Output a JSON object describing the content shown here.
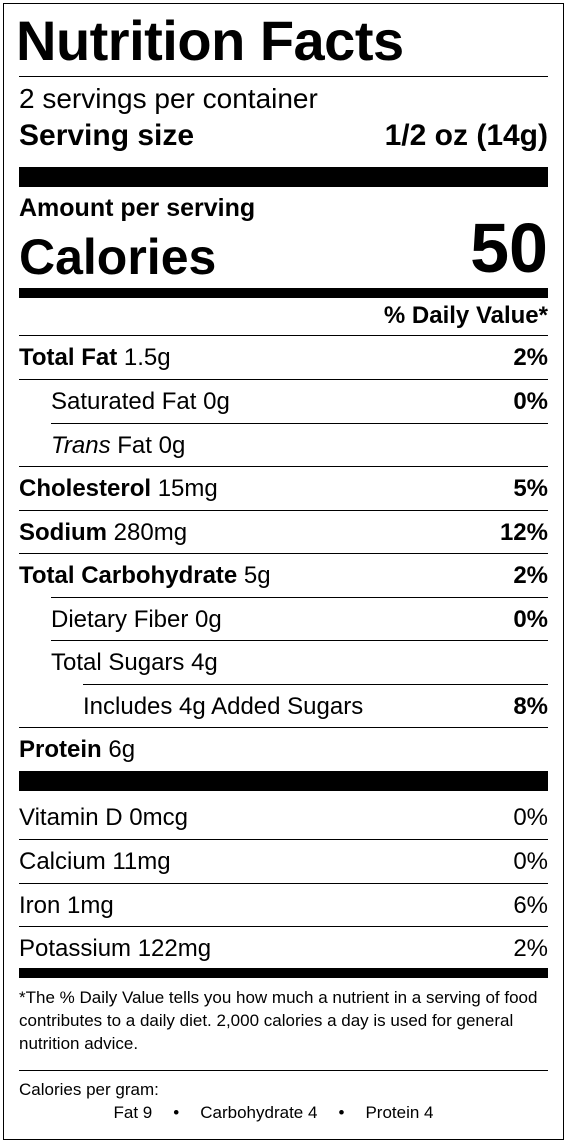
{
  "title": "Nutrition Facts",
  "servings_per_container": "2 servings per container",
  "serving_size": {
    "label": "Serving size",
    "value": "1/2 oz (14g)"
  },
  "amount_per_serving": "Amount per serving",
  "calories": {
    "label": "Calories",
    "value": "50"
  },
  "daily_value_header": "% Daily Value*",
  "nutrients": [
    {
      "name": "Total Fat",
      "amount": "1.5g",
      "dv": "2%"
    },
    {
      "name": "Saturated Fat",
      "amount": "0g",
      "dv": "0%"
    },
    {
      "name": "Trans",
      "suffix": "Fat",
      "amount": "0g",
      "dv": ""
    },
    {
      "name": "Cholesterol",
      "amount": "15mg",
      "dv": "5%"
    },
    {
      "name": "Sodium",
      "amount": "280mg",
      "dv": "12%"
    },
    {
      "name": "Total Carbohydrate",
      "amount": "5g",
      "dv": "2%"
    },
    {
      "name": "Dietary Fiber",
      "amount": "0g",
      "dv": "0%"
    },
    {
      "name": "Total Sugars",
      "amount": "4g",
      "dv": ""
    },
    {
      "text": "Includes 4g Added Sugars",
      "dv": "8%"
    },
    {
      "name": "Protein",
      "amount": "6g",
      "dv": ""
    }
  ],
  "vitamins": [
    {
      "text": "Vitamin D 0mcg",
      "dv": "0%"
    },
    {
      "text": "Calcium 11mg",
      "dv": "0%"
    },
    {
      "text": "Iron 1mg",
      "dv": "6%"
    },
    {
      "text": "Potassium 122mg",
      "dv": "2%"
    }
  ],
  "footnote": "*The % Daily Value tells you how much a nutrient in a serving of food contributes to a daily diet. 2,000 calories a day is used for general nutrition advice.",
  "calories_per_gram": {
    "label": "Calories per gram:",
    "fat": "Fat 9",
    "carbohydrate": "Carbohydrate 4",
    "protein": "Protein 4",
    "separator": "•"
  }
}
